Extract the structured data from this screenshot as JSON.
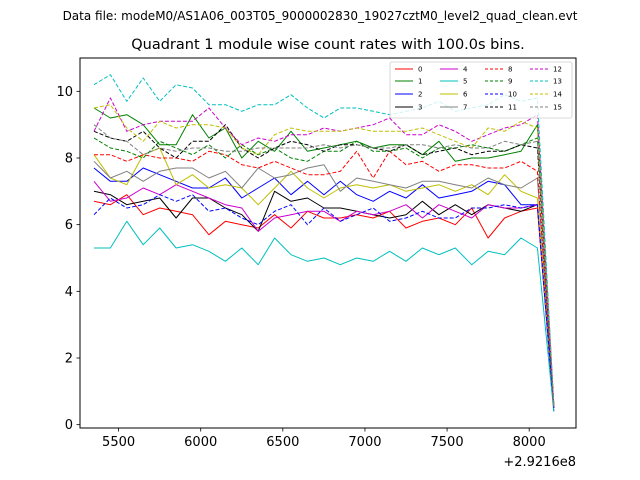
{
  "suptitle": "Data file: modeM0/AS1A06_003T05_9000002830_19027cztM0_level2_quad_clean.evt",
  "chart_data": {
    "type": "line",
    "title": "Quadrant 1 module wise count rates with 100.0s bins.",
    "xlabel": "",
    "ylabel": "",
    "x_offset_label": "+2.9216e8",
    "x_offset": 292160000,
    "xlim": [
      5265,
      8285
    ],
    "ylim": [
      -0.1,
      11.0
    ],
    "xticks": [
      5500,
      6000,
      6500,
      7000,
      7500,
      8000
    ],
    "yticks": [
      0,
      2,
      4,
      6,
      8,
      10
    ],
    "grid": false,
    "legend_position": "upper-right",
    "x": [
      5350,
      5450,
      5550,
      5650,
      5750,
      5850,
      5950,
      6050,
      6150,
      6250,
      6350,
      6450,
      6550,
      6650,
      6750,
      6850,
      6950,
      7050,
      7150,
      7250,
      7350,
      7450,
      7550,
      7650,
      7750,
      7850,
      7950,
      8050,
      8150
    ],
    "series": [
      {
        "name": "0",
        "color": "#ff0000",
        "dash": "solid",
        "values": [
          6.7,
          6.6,
          6.9,
          6.3,
          6.5,
          6.4,
          6.3,
          5.7,
          6.1,
          6.0,
          5.9,
          6.3,
          5.9,
          6.4,
          6.2,
          6.2,
          6.3,
          6.2,
          6.4,
          5.9,
          6.1,
          6.2,
          6.0,
          6.5,
          5.6,
          6.2,
          6.4,
          6.5,
          0.5
        ]
      },
      {
        "name": "1",
        "color": "#008000",
        "dash": "solid",
        "values": [
          9.5,
          9.2,
          9.3,
          9.0,
          8.4,
          8.4,
          9.3,
          8.6,
          8.9,
          8.0,
          8.5,
          8.2,
          8.8,
          8.2,
          8.3,
          8.4,
          8.5,
          8.3,
          8.4,
          8.4,
          8.1,
          8.5,
          7.9,
          8.0,
          8.0,
          8.1,
          8.2,
          9.0,
          0.5
        ]
      },
      {
        "name": "2",
        "color": "#0000ff",
        "dash": "solid",
        "values": [
          7.7,
          7.3,
          7.3,
          7.7,
          7.5,
          7.3,
          7.1,
          7.1,
          7.4,
          6.8,
          7.1,
          7.4,
          6.9,
          7.3,
          6.9,
          7.3,
          6.9,
          6.7,
          7.0,
          6.8,
          7.2,
          6.8,
          6.9,
          7.0,
          7.3,
          7.2,
          6.6,
          6.6,
          0.4
        ]
      },
      {
        "name": "3",
        "color": "#000000",
        "dash": "solid",
        "values": [
          7.0,
          6.9,
          6.6,
          6.7,
          6.8,
          6.2,
          6.8,
          6.8,
          6.5,
          6.3,
          5.8,
          7.0,
          6.7,
          6.8,
          6.5,
          6.5,
          6.4,
          6.3,
          6.2,
          6.3,
          6.7,
          6.3,
          6.6,
          6.3,
          6.6,
          6.5,
          6.4,
          6.6,
          0.5
        ]
      },
      {
        "name": "4",
        "color": "#cc00cc",
        "dash": "solid",
        "values": [
          7.3,
          6.7,
          6.8,
          7.1,
          6.9,
          7.2,
          7.0,
          6.8,
          6.6,
          6.5,
          5.8,
          6.2,
          6.3,
          6.4,
          6.4,
          6.1,
          6.4,
          6.3,
          6.4,
          6.6,
          6.2,
          6.6,
          6.4,
          6.2,
          6.6,
          6.5,
          6.5,
          6.6,
          0.5
        ]
      },
      {
        "name": "5",
        "color": "#00bfbf",
        "dash": "solid",
        "values": [
          5.3,
          5.3,
          6.1,
          5.4,
          5.9,
          5.3,
          5.4,
          5.2,
          4.9,
          5.3,
          4.8,
          5.6,
          5.1,
          4.9,
          5.0,
          4.8,
          5.0,
          4.9,
          5.2,
          4.9,
          5.3,
          5.1,
          5.3,
          4.8,
          5.2,
          5.1,
          5.6,
          5.3,
          0.4
        ]
      },
      {
        "name": "6",
        "color": "#bfbf00",
        "dash": "solid",
        "values": [
          8.1,
          7.4,
          7.2,
          8.1,
          8.3,
          7.2,
          7.5,
          7.1,
          7.2,
          7.1,
          6.6,
          7.1,
          7.6,
          7.1,
          6.8,
          7.1,
          7.2,
          7.1,
          7.2,
          7.0,
          7.1,
          7.2,
          7.0,
          7.2,
          6.9,
          7.5,
          7.0,
          6.8,
          0.5
        ]
      },
      {
        "name": "7",
        "color": "#808080",
        "dash": "solid",
        "values": [
          7.9,
          7.4,
          7.6,
          7.3,
          7.6,
          7.7,
          7.7,
          7.4,
          7.6,
          7.1,
          7.7,
          7.4,
          7.5,
          7.7,
          7.8,
          7.0,
          7.4,
          7.3,
          7.2,
          7.1,
          7.3,
          7.3,
          7.2,
          7.1,
          7.4,
          7.2,
          7.1,
          7.4,
          0.5
        ]
      },
      {
        "name": "8",
        "color": "#ff0000",
        "dash": "dashed",
        "values": [
          8.1,
          8.1,
          7.9,
          8.1,
          8.0,
          8.0,
          7.9,
          8.2,
          8.1,
          7.8,
          7.7,
          7.9,
          7.7,
          7.5,
          7.5,
          7.6,
          8.2,
          7.4,
          8.2,
          7.8,
          7.9,
          7.6,
          7.8,
          7.8,
          7.7,
          7.7,
          7.9,
          7.6,
          0.6
        ]
      },
      {
        "name": "9",
        "color": "#008000",
        "dash": "dashed",
        "values": [
          8.6,
          8.3,
          8.2,
          8.0,
          8.5,
          8.3,
          8.1,
          8.4,
          8.0,
          8.4,
          8.1,
          8.3,
          8.0,
          7.9,
          8.2,
          8.2,
          8.5,
          8.2,
          8.2,
          8.3,
          8.0,
          8.3,
          8.3,
          8.4,
          8.3,
          8.2,
          8.4,
          8.6,
          0.6
        ]
      },
      {
        "name": "10",
        "color": "#0000ff",
        "dash": "dashed",
        "values": [
          6.3,
          6.8,
          6.5,
          6.6,
          6.9,
          6.7,
          6.9,
          6.4,
          6.5,
          6.2,
          6.0,
          6.4,
          6.6,
          6.0,
          6.5,
          6.1,
          6.3,
          6.5,
          6.1,
          6.2,
          6.4,
          6.2,
          6.2,
          6.5,
          6.5,
          6.6,
          6.5,
          6.6,
          0.5
        ]
      },
      {
        "name": "11",
        "color": "#000000",
        "dash": "dashed",
        "values": [
          8.8,
          8.6,
          8.5,
          8.8,
          8.3,
          8.0,
          8.5,
          8.5,
          9.0,
          8.3,
          8.0,
          8.3,
          8.5,
          8.4,
          8.2,
          8.4,
          8.4,
          8.3,
          8.2,
          8.4,
          8.1,
          8.2,
          8.3,
          8.1,
          8.2,
          8.2,
          8.4,
          8.3,
          0.6
        ]
      },
      {
        "name": "12",
        "color": "#cc00cc",
        "dash": "dashed",
        "values": [
          8.8,
          9.8,
          8.8,
          9.0,
          9.1,
          9.1,
          9.1,
          9.5,
          8.9,
          8.4,
          8.6,
          8.5,
          8.7,
          8.7,
          8.9,
          8.8,
          8.9,
          9.0,
          9.2,
          8.7,
          8.7,
          9.0,
          8.8,
          8.5,
          8.7,
          8.9,
          9.0,
          9.3,
          0.6
        ]
      },
      {
        "name": "13",
        "color": "#00bfbf",
        "dash": "dashed",
        "values": [
          10.2,
          10.5,
          9.7,
          10.4,
          9.7,
          10.2,
          10.1,
          9.6,
          9.6,
          9.4,
          9.6,
          9.6,
          9.9,
          9.5,
          9.2,
          9.5,
          9.5,
          9.4,
          9.3,
          9.4,
          9.5,
          9.7,
          9.4,
          9.5,
          9.6,
          9.9,
          9.7,
          9.8,
          0.6
        ]
      },
      {
        "name": "14",
        "color": "#bfbf00",
        "dash": "dashed",
        "values": [
          9.5,
          9.6,
          8.9,
          8.5,
          9.1,
          8.9,
          9.0,
          9.0,
          8.9,
          8.3,
          8.1,
          8.7,
          8.9,
          8.8,
          8.8,
          8.8,
          8.9,
          8.8,
          8.8,
          8.8,
          8.9,
          8.7,
          8.5,
          8.3,
          8.9,
          8.8,
          9.1,
          8.9,
          0.6
        ]
      },
      {
        "name": "15",
        "color": "#808080",
        "dash": "dashed",
        "values": [
          9.0,
          8.6,
          8.5,
          8.1,
          8.3,
          8.2,
          8.3,
          8.3,
          8.2,
          8.2,
          8.3,
          8.3,
          8.3,
          8.3,
          8.4,
          8.3,
          8.4,
          8.3,
          8.3,
          8.4,
          8.4,
          8.3,
          8.4,
          8.3,
          8.3,
          8.5,
          8.4,
          8.5,
          0.6
        ]
      }
    ]
  }
}
